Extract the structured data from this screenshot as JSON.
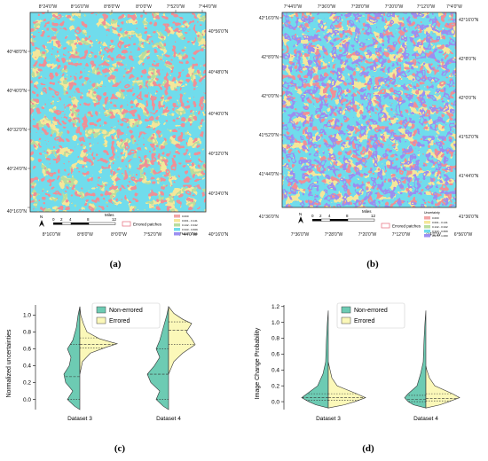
{
  "figure": {
    "captions": [
      "(a)",
      "(b)",
      "(c)",
      "(d)"
    ]
  },
  "map_a": {
    "top_lon": [
      "8°24'0\"W",
      "8°16'0\"W",
      "8°8'0\"W",
      "8°0'0\"W",
      "7°52'0\"W",
      "7°44'0\"W"
    ],
    "bottom_lon": [
      "8°16'0\"W",
      "8°8'0\"W",
      "8°0'0\"W",
      "7°52'0\"W",
      "7°44'0\"W"
    ],
    "left_lat": [
      "40°48'0\"N",
      "40°40'0\"N",
      "40°32'0\"N",
      "40°24'0\"N",
      "40°16'0\"N"
    ],
    "right_lat": [
      "40°56'0\"N",
      "40°48'0\"N",
      "40°40'0\"N",
      "40°32'0\"N",
      "40°24'0\"N",
      "40°16'0\"N"
    ],
    "scale": {
      "ticks": [
        "0",
        "2",
        "4",
        "8",
        "12"
      ],
      "unit": "Miles"
    },
    "north": "N",
    "legend_label": "Errored patches",
    "class_labels": [
      "0.000",
      "0.001 - 0.141",
      "0.142 - 0.342",
      "0.343 - 0.669",
      "0.670 - 1.000"
    ]
  },
  "map_b": {
    "top_lon": [
      "7°44'0\"W",
      "7°36'0\"W",
      "7°28'0\"W",
      "7°20'0\"W",
      "7°12'0\"W",
      "7°4'0\"W"
    ],
    "bottom_lon": [
      "7°36'0\"W",
      "7°28'0\"W",
      "7°20'0\"W",
      "7°12'0\"W",
      "7°4'0\"W",
      "6°56'0\"W"
    ],
    "left_lat": [
      "42°16'0\"N",
      "42°8'0\"N",
      "42°0'0\"N",
      "41°52'0\"N",
      "41°44'0\"N",
      "41°36'0\"N"
    ],
    "right_lat": [
      "42°16'0\"N",
      "42°8'0\"N",
      "42°0'0\"N",
      "41°52'0\"N",
      "41°44'0\"N",
      "41°36'0\"N"
    ],
    "scale": {
      "ticks": [
        "0",
        "2",
        "4",
        "8",
        "12"
      ],
      "unit": "Miles"
    },
    "north": "N",
    "legend_label": "Errored patches",
    "legend_title": "Uncertainty",
    "class_labels": [
      "0.000",
      "0.001 - 0.141",
      "0.142 - 0.342",
      "0.343 - 0.669",
      "0.670 - 1.000"
    ]
  },
  "colors": {
    "class_colors": [
      "#f2a5a5",
      "#f4e79a",
      "#b8dd9e",
      "#6fdcec",
      "#9b8ef0"
    ],
    "non_errored": "#6dcbb3",
    "errored": "#fbf8b9"
  },
  "chart_data": [
    {
      "type": "violin",
      "ylabel": "Normalized uncertainties",
      "categories": [
        "Dataset 3",
        "Dataset 4"
      ],
      "ylim": [
        -0.12,
        1.12
      ],
      "yticks": [
        0.0,
        0.2,
        0.4,
        0.6,
        0.8,
        1.0
      ],
      "legend_position": "top-right",
      "series": [
        {
          "name": "Non-errored",
          "side": "left",
          "quartiles": [
            [
              0.0,
              0.27,
              0.65
            ],
            [
              0.0,
              0.3,
              0.6
            ]
          ]
        },
        {
          "name": "Errored",
          "side": "right",
          "quartiles": [
            [
              0.61,
              0.65,
              0.73
            ],
            [
              0.65,
              0.82,
              0.92
            ]
          ]
        }
      ]
    },
    {
      "type": "violin",
      "ylabel": "Image Change Probability",
      "categories": [
        "Dataset 3",
        "Dataset 4"
      ],
      "ylim": [
        -0.1,
        1.22
      ],
      "yticks": [
        0.0,
        0.2,
        0.4,
        0.6,
        0.8,
        1.0,
        1.2
      ],
      "legend_position": "top-right",
      "series": [
        {
          "name": "Non-errored",
          "side": "left",
          "quartiles": [
            [
              0.02,
              0.05,
              0.1
            ],
            [
              0.0,
              0.03,
              0.08
            ]
          ]
        },
        {
          "name": "Errored",
          "side": "right",
          "quartiles": [
            [
              0.02,
              0.05,
              0.1
            ],
            [
              0.01,
              0.04,
              0.1
            ]
          ]
        }
      ]
    }
  ]
}
